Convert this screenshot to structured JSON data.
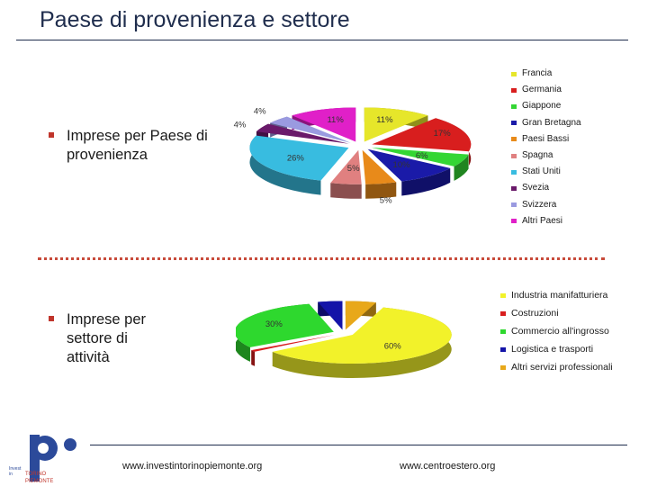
{
  "slide": {
    "title": "Paese di provenienza e settore",
    "bullet1": "Imprese per Paese di provenienza",
    "bullet2": "Imprese per settore di attività",
    "url_left": "www.investintorinopiemonte.org",
    "url_right": "www.centroestero.org",
    "logo_text_top": "TORINO",
    "logo_text_mid": "PIEMONTE",
    "logo_text_side": "Invest"
  },
  "chart_data": [
    {
      "type": "pie",
      "style": "exploded 3D",
      "legend_position": "right",
      "categories": [
        "Francia",
        "Germania",
        "Giappone",
        "Gran Bretagna",
        "Paesi Bassi",
        "Spagna",
        "Stati Uniti",
        "Svezia",
        "Svizzera",
        "Altri Paesi"
      ],
      "values": [
        11,
        17,
        6,
        10,
        5,
        5,
        26,
        4,
        4,
        11
      ],
      "labels": [
        "11%",
        "17%",
        "6%",
        "10%",
        "5%",
        "5%",
        "26%",
        "4%",
        "4%",
        "11%"
      ],
      "colors": [
        "#e6e62a",
        "#d81e1e",
        "#34d634",
        "#1a1aa8",
        "#e88a1a",
        "#e08080",
        "#38bce0",
        "#6a1a6a",
        "#9a9ae0",
        "#e020c8"
      ]
    },
    {
      "type": "pie",
      "style": "exploded 3D",
      "legend_position": "right",
      "categories": [
        "Industria manifatturiera",
        "Costruzioni",
        "Commercio all'ingrosso",
        "Logistica e trasporti",
        "Altri servizi professionali"
      ],
      "values": [
        60,
        1,
        30,
        4,
        5
      ],
      "labels": [
        "60%",
        "1%",
        "30%",
        "4%",
        "5%"
      ],
      "colors": [
        "#f2f22a",
        "#d81e1e",
        "#2ed82e",
        "#1414a8",
        "#e8a81a"
      ]
    }
  ]
}
